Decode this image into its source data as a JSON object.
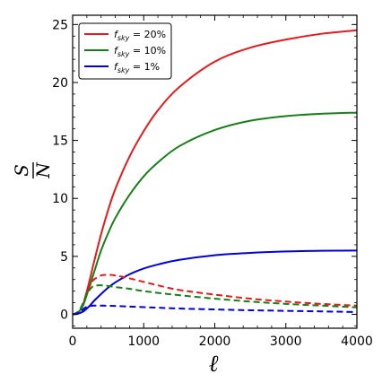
{
  "chart_data": {
    "type": "line",
    "title": "",
    "xlabel": "ℓ",
    "ylabel_numerator": "S",
    "ylabel_denominator": "N",
    "xlim": [
      0,
      4000
    ],
    "ylim": [
      -1.2,
      25.8
    ],
    "x_ticks": [
      0,
      1000,
      2000,
      3000,
      4000
    ],
    "y_ticks": [
      0,
      5,
      10,
      15,
      20,
      25
    ],
    "x_tick_labels": [
      "0",
      "1000",
      "2000",
      "3000",
      "4000"
    ],
    "y_tick_labels": [
      "0",
      "5",
      "10",
      "15",
      "20",
      "25"
    ],
    "grid": false,
    "legend_position": "top-left",
    "x": [
      50,
      100,
      150,
      200,
      250,
      300,
      400,
      500,
      600,
      800,
      1000,
      1200,
      1500,
      2000,
      2500,
      3000,
      3500,
      4000
    ],
    "series": [
      {
        "name": "f_sky = 20%",
        "legend_main": "f",
        "legend_sub": "sky",
        "legend_rest": " = 20%",
        "color": "#e41a1c",
        "style": "solid",
        "values": [
          0.1,
          0.3,
          0.9,
          2.0,
          3.2,
          4.5,
          6.9,
          9.0,
          10.8,
          13.6,
          15.8,
          17.6,
          19.6,
          21.8,
          23.0,
          23.7,
          24.2,
          24.5
        ]
      },
      {
        "name": "f_sky = 10%",
        "legend_main": "f",
        "legend_sub": "sky",
        "legend_rest": " = 10%",
        "color": "#168016",
        "style": "solid",
        "values": [
          0.1,
          0.3,
          0.8,
          1.7,
          2.6,
          3.6,
          5.5,
          7.0,
          8.3,
          10.3,
          11.9,
          13.1,
          14.5,
          15.9,
          16.7,
          17.1,
          17.3,
          17.4
        ]
      },
      {
        "name": "f_sky = 1%",
        "legend_main": "f",
        "legend_sub": "sky",
        "legend_rest": " = 1%",
        "color": "#0000dd",
        "style": "solid",
        "values": [
          0.02,
          0.1,
          0.25,
          0.5,
          0.8,
          1.15,
          1.75,
          2.3,
          2.75,
          3.45,
          3.95,
          4.3,
          4.7,
          5.1,
          5.3,
          5.42,
          5.48,
          5.5
        ]
      },
      {
        "name": "",
        "color": "#e41a1c",
        "style": "dashed",
        "values": [
          0.1,
          0.4,
          1.0,
          1.9,
          2.6,
          3.0,
          3.35,
          3.4,
          3.35,
          3.1,
          2.8,
          2.5,
          2.1,
          1.7,
          1.35,
          1.1,
          0.9,
          0.75
        ]
      },
      {
        "name": "",
        "color": "#168016",
        "style": "dashed",
        "values": [
          0.1,
          0.4,
          1.0,
          1.7,
          2.2,
          2.45,
          2.5,
          2.45,
          2.35,
          2.2,
          2.0,
          1.85,
          1.65,
          1.35,
          1.1,
          0.9,
          0.75,
          0.6
        ]
      },
      {
        "name": "",
        "color": "#0000dd",
        "style": "dashed",
        "values": [
          0.05,
          0.2,
          0.45,
          0.65,
          0.72,
          0.75,
          0.75,
          0.74,
          0.72,
          0.67,
          0.62,
          0.57,
          0.5,
          0.42,
          0.35,
          0.3,
          0.25,
          0.2
        ]
      }
    ]
  }
}
